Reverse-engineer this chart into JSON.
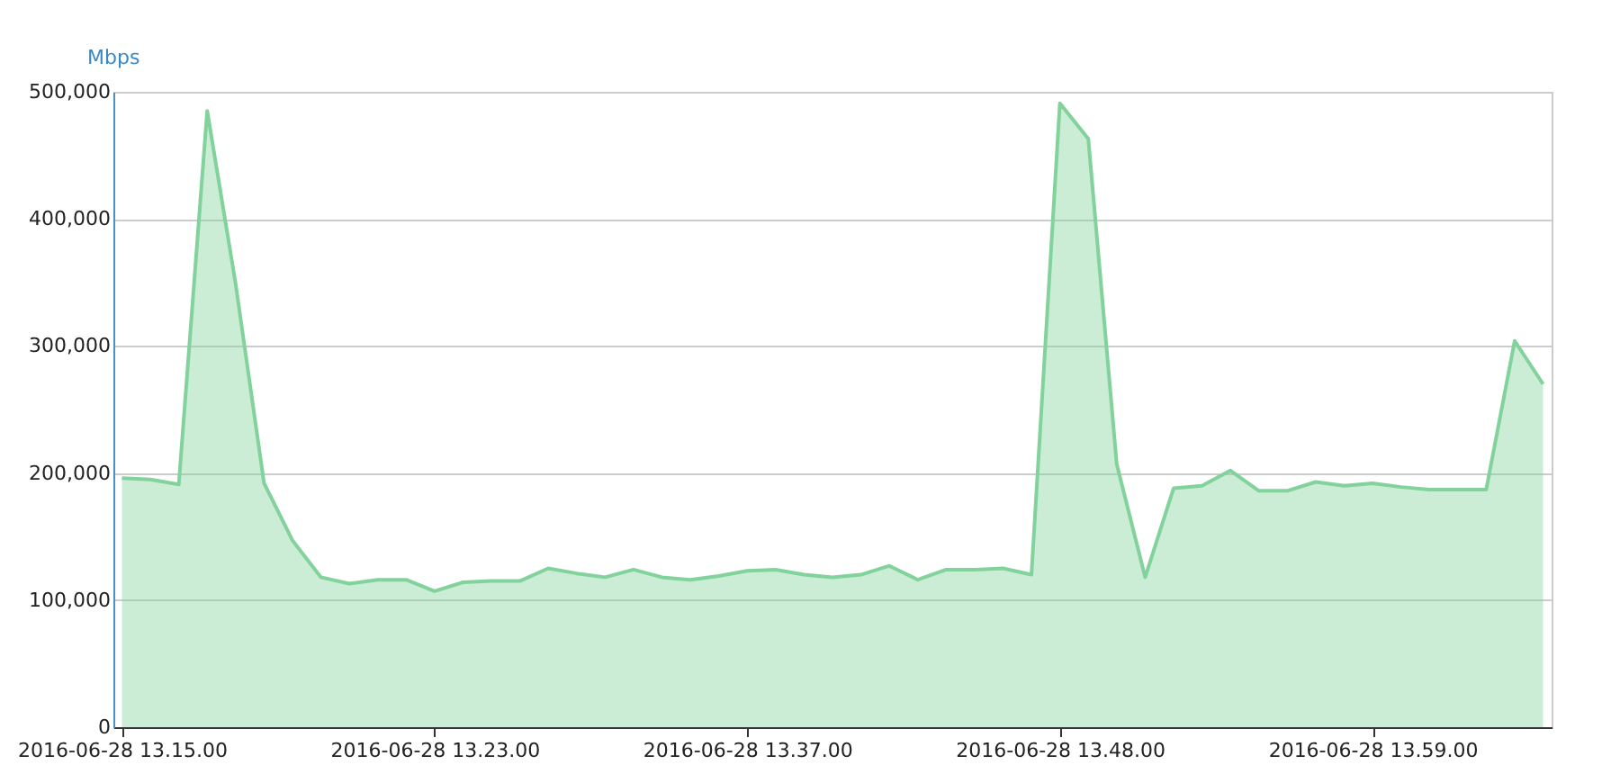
{
  "chart_data": {
    "type": "area",
    "ylabel": "Mbps",
    "categories": [
      "2016-06-28 13.15.00",
      null,
      null,
      null,
      null,
      null,
      null,
      null,
      null,
      null,
      null,
      "2016-06-28 13.23.00",
      null,
      null,
      null,
      null,
      null,
      null,
      null,
      null,
      null,
      null,
      "2016-06-28 13.37.00",
      null,
      null,
      null,
      null,
      null,
      null,
      null,
      null,
      null,
      null,
      "2016-06-28 13.48.00",
      null,
      null,
      null,
      null,
      null,
      null,
      null,
      null,
      null,
      null,
      "2016-06-28 13.59.00",
      null,
      null,
      null,
      null,
      null,
      null
    ],
    "series": [
      {
        "color": "#82d29c",
        "values": [
          196000,
          195000,
          191000,
          485000,
          349000,
          192000,
          147000,
          118000,
          113000,
          116000,
          116000,
          107000,
          114000,
          115000,
          115000,
          125000,
          121000,
          118000,
          124000,
          118000,
          116000,
          119000,
          123000,
          124000,
          120000,
          118000,
          120000,
          127000,
          116000,
          124000,
          124000,
          125000,
          120000,
          491000,
          463000,
          207000,
          118000,
          188000,
          190000,
          202000,
          186000,
          186000,
          193000,
          190000,
          192000,
          189000,
          187000,
          187000,
          187000,
          304000,
          270000
        ]
      }
    ],
    "ylim": [
      0,
      500000
    ],
    "yticks": [
      0,
      {
        "value": 100000,
        "label": "100,000"
      },
      {
        "value": 200000,
        "label": "200,000"
      },
      {
        "value": 300000,
        "label": "300,000"
      },
      {
        "value": 400000,
        "label": "400,000"
      },
      {
        "value": 500000,
        "label": "500,000"
      }
    ],
    "grid": "y"
  }
}
